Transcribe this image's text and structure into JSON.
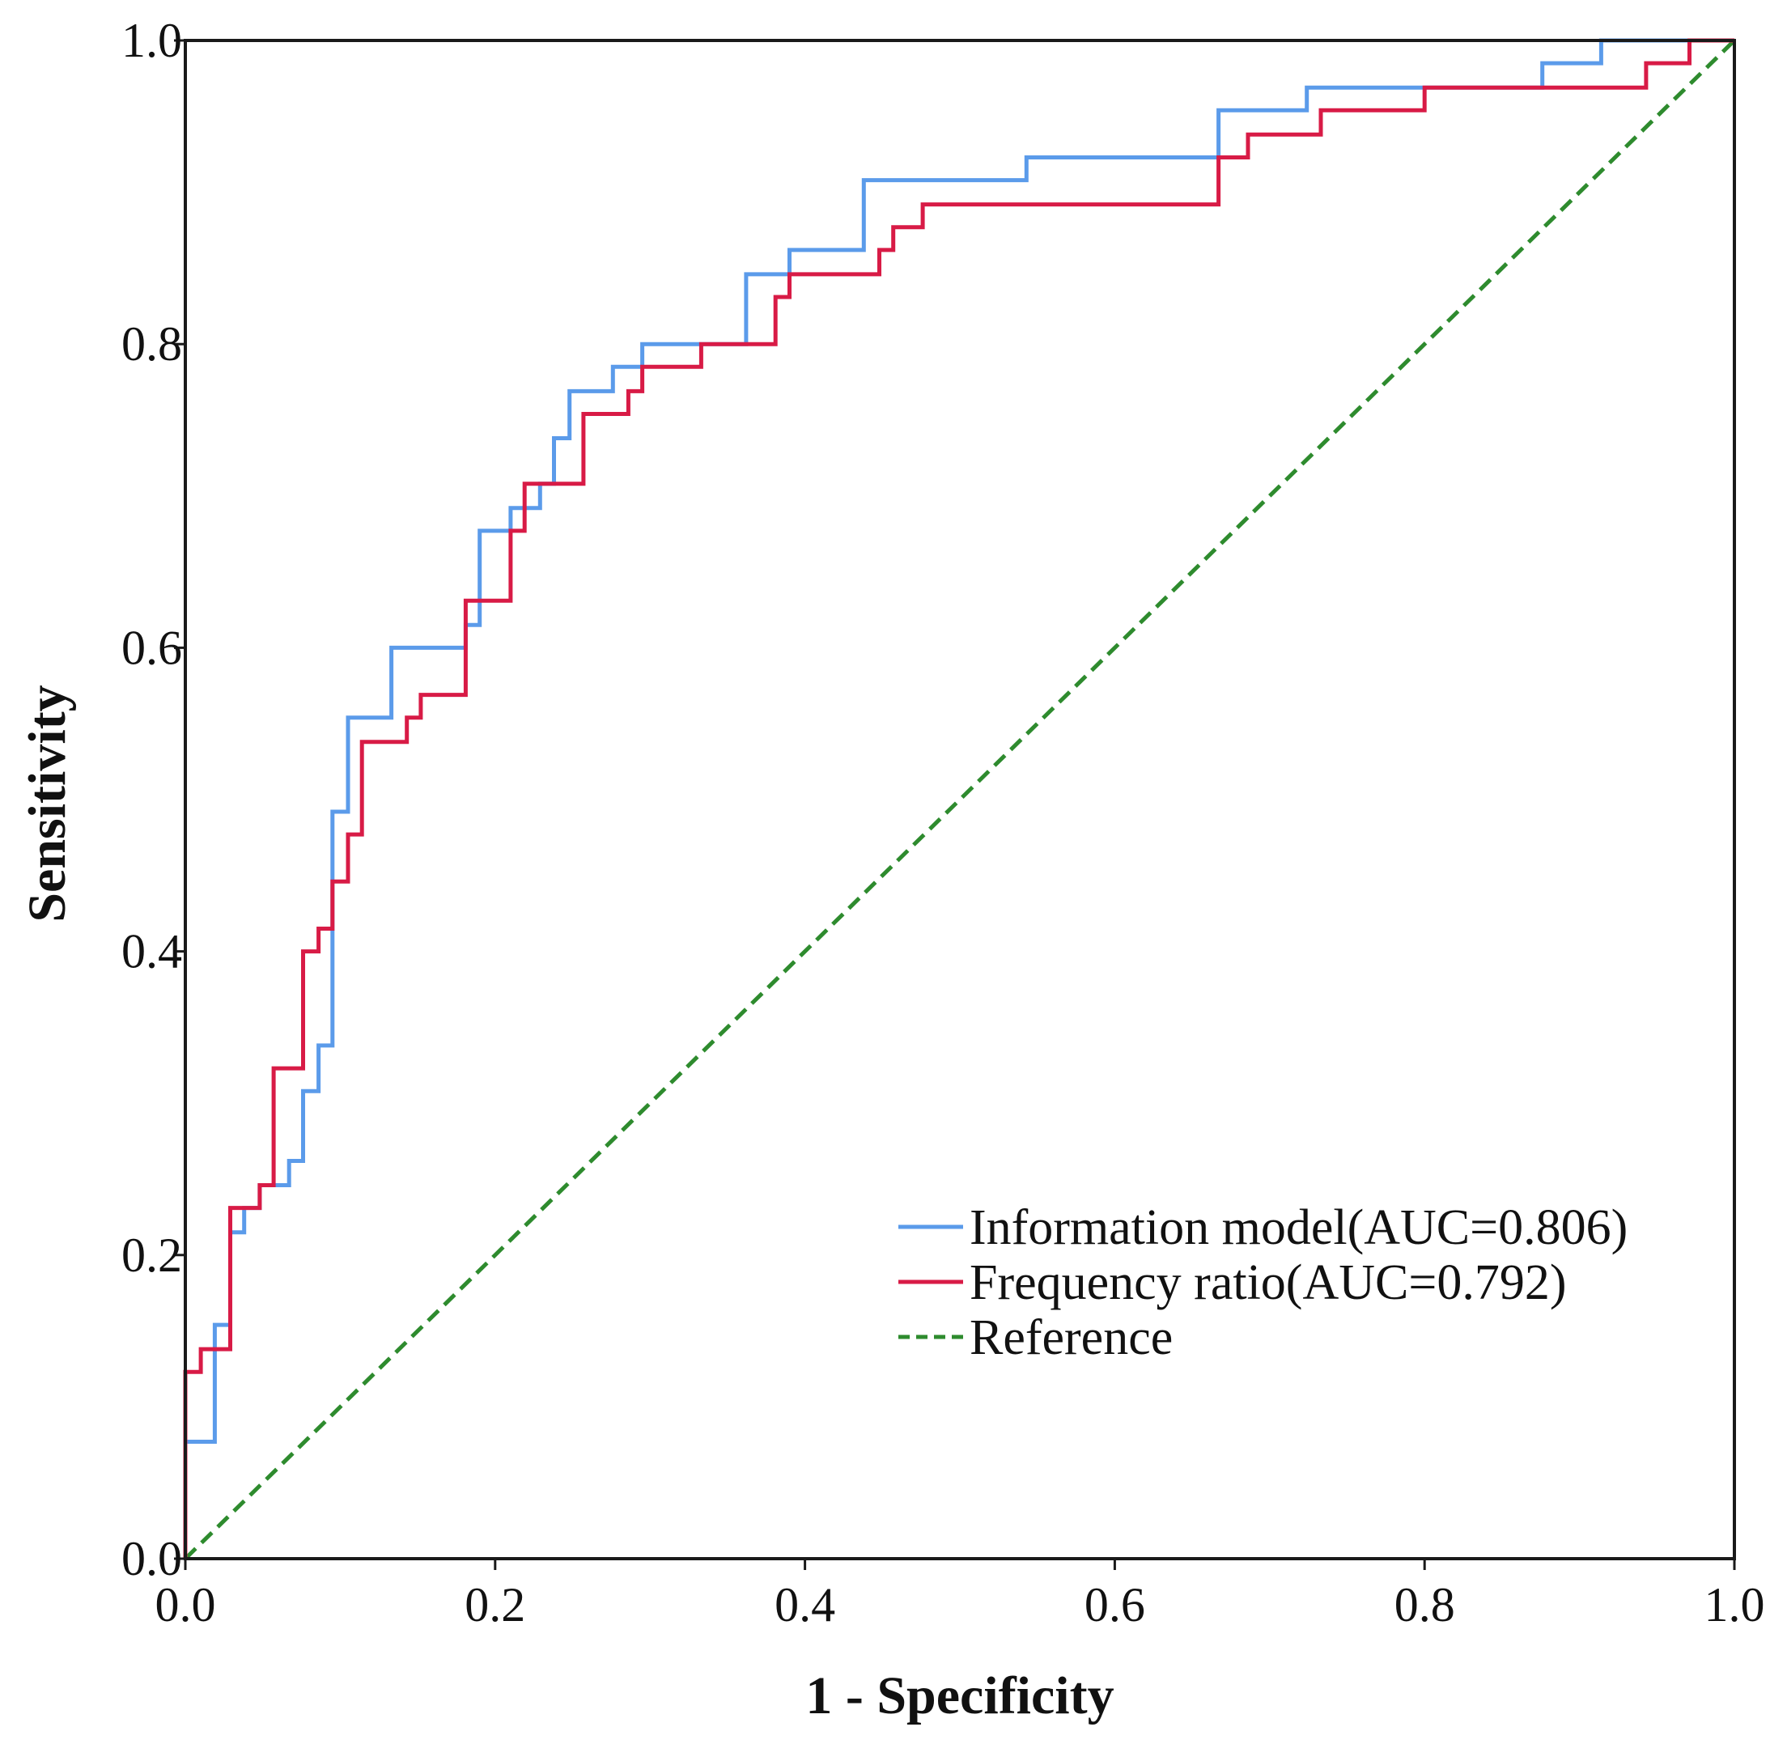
{
  "chart_data": {
    "type": "line",
    "title": "",
    "xlabel": "1 - Specificity",
    "ylabel": "Sensitivity",
    "xlim": [
      0,
      1
    ],
    "ylim": [
      0,
      1
    ],
    "xticks": [
      "0.0",
      "0.2",
      "0.4",
      "0.6",
      "0.8",
      "1.0"
    ],
    "yticks": [
      "0.0",
      "0.2",
      "0.4",
      "0.6",
      "0.8",
      "1.0"
    ],
    "grid": false,
    "legend_position": "bottom-right",
    "series": [
      {
        "name": "Information model(AUC=0.806)",
        "color": "#5b9bea",
        "style": "solid",
        "points": [
          [
            0,
            0
          ],
          [
            0,
            0.077
          ],
          [
            0.019,
            0.077
          ],
          [
            0.019,
            0.154
          ],
          [
            0.029,
            0.154
          ],
          [
            0.029,
            0.215
          ],
          [
            0.038,
            0.215
          ],
          [
            0.038,
            0.231
          ],
          [
            0.048,
            0.231
          ],
          [
            0.048,
            0.246
          ],
          [
            0.067,
            0.246
          ],
          [
            0.067,
            0.262
          ],
          [
            0.076,
            0.262
          ],
          [
            0.076,
            0.308
          ],
          [
            0.086,
            0.308
          ],
          [
            0.086,
            0.338
          ],
          [
            0.095,
            0.338
          ],
          [
            0.095,
            0.492
          ],
          [
            0.105,
            0.492
          ],
          [
            0.105,
            0.554
          ],
          [
            0.133,
            0.554
          ],
          [
            0.133,
            0.6
          ],
          [
            0.181,
            0.6
          ],
          [
            0.181,
            0.615
          ],
          [
            0.19,
            0.615
          ],
          [
            0.19,
            0.677
          ],
          [
            0.21,
            0.677
          ],
          [
            0.21,
            0.692
          ],
          [
            0.229,
            0.692
          ],
          [
            0.229,
            0.708
          ],
          [
            0.238,
            0.708
          ],
          [
            0.238,
            0.738
          ],
          [
            0.248,
            0.738
          ],
          [
            0.248,
            0.769
          ],
          [
            0.276,
            0.769
          ],
          [
            0.276,
            0.785
          ],
          [
            0.295,
            0.785
          ],
          [
            0.295,
            0.8
          ],
          [
            0.362,
            0.8
          ],
          [
            0.362,
            0.846
          ],
          [
            0.39,
            0.846
          ],
          [
            0.39,
            0.862
          ],
          [
            0.438,
            0.862
          ],
          [
            0.438,
            0.908
          ],
          [
            0.543,
            0.908
          ],
          [
            0.543,
            0.923
          ],
          [
            0.667,
            0.923
          ],
          [
            0.667,
            0.954
          ],
          [
            0.724,
            0.954
          ],
          [
            0.724,
            0.969
          ],
          [
            0.876,
            0.969
          ],
          [
            0.876,
            0.985
          ],
          [
            0.914,
            0.985
          ],
          [
            0.914,
            1
          ],
          [
            1,
            1
          ]
        ]
      },
      {
        "name": "Frequency ratio(AUC=0.792)",
        "color": "#d81b46",
        "style": "solid",
        "points": [
          [
            0,
            0
          ],
          [
            0,
            0.123
          ],
          [
            0.01,
            0.123
          ],
          [
            0.01,
            0.138
          ],
          [
            0.029,
            0.138
          ],
          [
            0.029,
            0.231
          ],
          [
            0.048,
            0.231
          ],
          [
            0.048,
            0.246
          ],
          [
            0.057,
            0.246
          ],
          [
            0.057,
            0.323
          ],
          [
            0.076,
            0.323
          ],
          [
            0.076,
            0.4
          ],
          [
            0.086,
            0.4
          ],
          [
            0.086,
            0.415
          ],
          [
            0.095,
            0.415
          ],
          [
            0.095,
            0.446
          ],
          [
            0.105,
            0.446
          ],
          [
            0.105,
            0.477
          ],
          [
            0.114,
            0.477
          ],
          [
            0.114,
            0.538
          ],
          [
            0.143,
            0.538
          ],
          [
            0.143,
            0.554
          ],
          [
            0.152,
            0.554
          ],
          [
            0.152,
            0.569
          ],
          [
            0.181,
            0.569
          ],
          [
            0.181,
            0.631
          ],
          [
            0.21,
            0.631
          ],
          [
            0.21,
            0.677
          ],
          [
            0.219,
            0.677
          ],
          [
            0.219,
            0.708
          ],
          [
            0.257,
            0.708
          ],
          [
            0.257,
            0.754
          ],
          [
            0.286,
            0.754
          ],
          [
            0.286,
            0.769
          ],
          [
            0.295,
            0.769
          ],
          [
            0.295,
            0.785
          ],
          [
            0.333,
            0.785
          ],
          [
            0.333,
            0.8
          ],
          [
            0.381,
            0.8
          ],
          [
            0.381,
            0.831
          ],
          [
            0.39,
            0.831
          ],
          [
            0.39,
            0.846
          ],
          [
            0.448,
            0.846
          ],
          [
            0.448,
            0.862
          ],
          [
            0.457,
            0.862
          ],
          [
            0.457,
            0.877
          ],
          [
            0.476,
            0.877
          ],
          [
            0.476,
            0.892
          ],
          [
            0.667,
            0.892
          ],
          [
            0.667,
            0.923
          ],
          [
            0.686,
            0.923
          ],
          [
            0.686,
            0.938
          ],
          [
            0.733,
            0.938
          ],
          [
            0.733,
            0.954
          ],
          [
            0.8,
            0.954
          ],
          [
            0.8,
            0.969
          ],
          [
            0.943,
            0.969
          ],
          [
            0.943,
            0.985
          ],
          [
            0.971,
            0.985
          ],
          [
            0.971,
            1
          ],
          [
            1,
            1
          ]
        ]
      },
      {
        "name": "Reference",
        "color": "#2e8b2e",
        "style": "dashed",
        "points": [
          [
            0,
            0
          ],
          [
            1,
            1
          ]
        ]
      }
    ]
  }
}
